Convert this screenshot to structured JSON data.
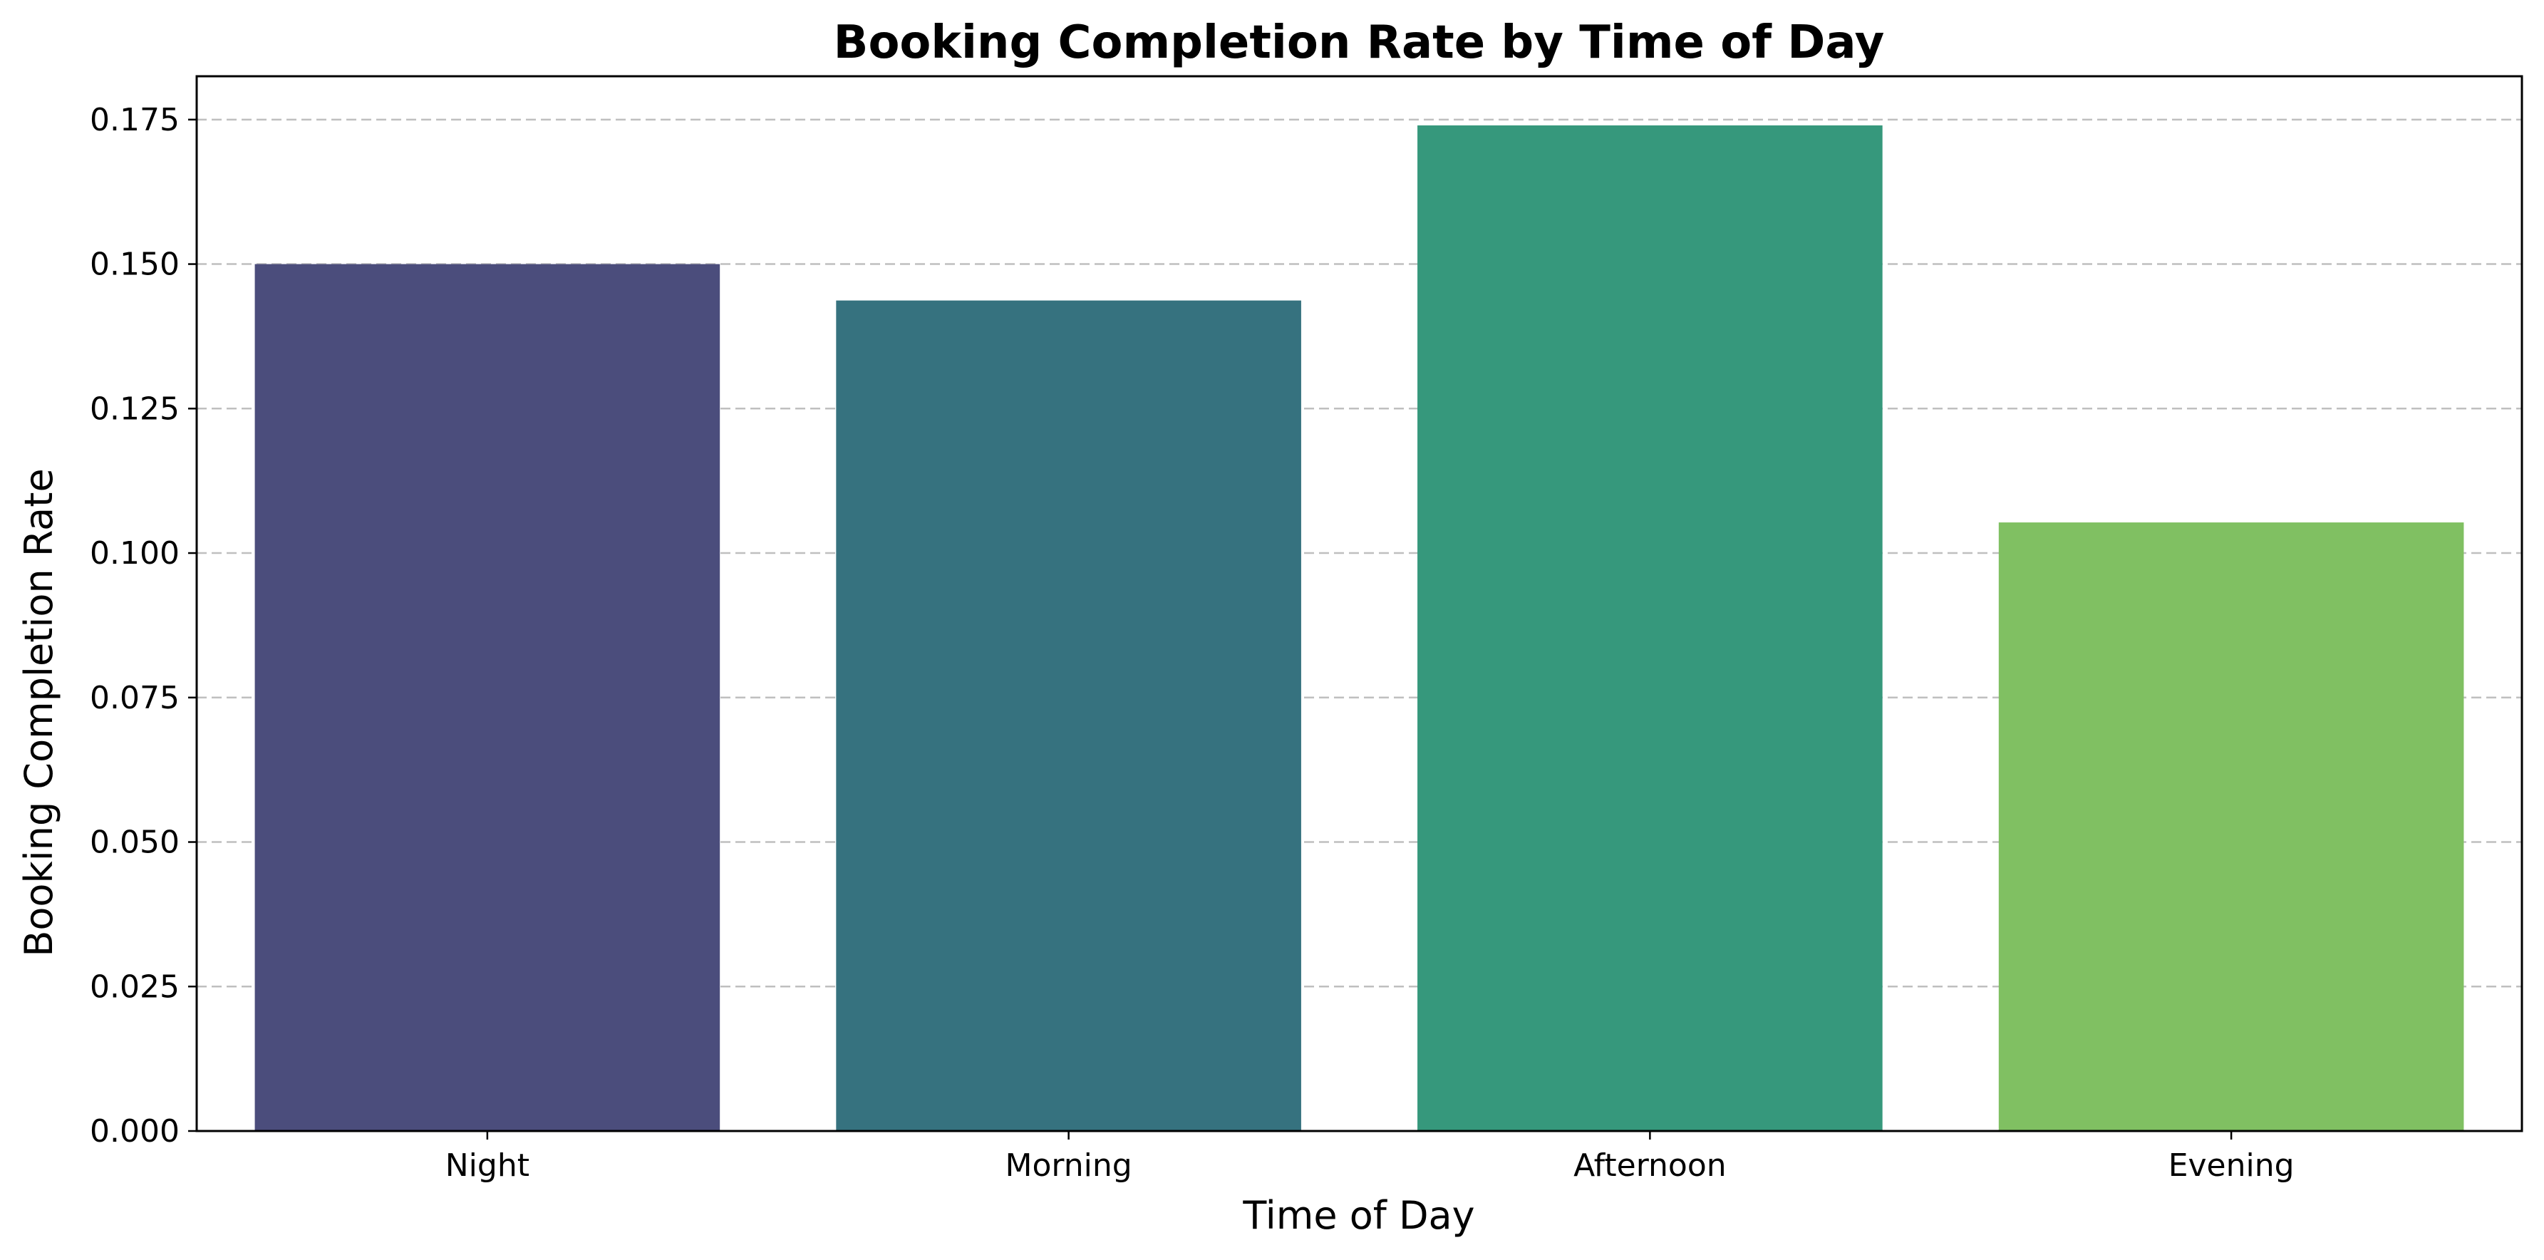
{
  "chart_data": {
    "type": "bar",
    "title": "Booking Completion Rate by Time of Day",
    "xlabel": "Time of Day",
    "ylabel": "Booking Completion Rate",
    "categories": [
      "Night",
      "Morning",
      "Afternoon",
      "Evening"
    ],
    "values": [
      0.15,
      0.1437,
      0.174,
      0.1053
    ],
    "colors": [
      "#4b4d7c",
      "#36727f",
      "#36987c",
      "#80c062"
    ],
    "ylim": [
      0,
      0.1825
    ],
    "yticks": [
      0.0,
      0.025,
      0.05,
      0.075,
      0.1,
      0.125,
      0.15,
      0.175
    ],
    "ytick_labels": [
      "0.000",
      "0.025",
      "0.050",
      "0.075",
      "0.100",
      "0.125",
      "0.150",
      "0.175"
    ],
    "grid": "y-dashed",
    "legend": "none"
  }
}
